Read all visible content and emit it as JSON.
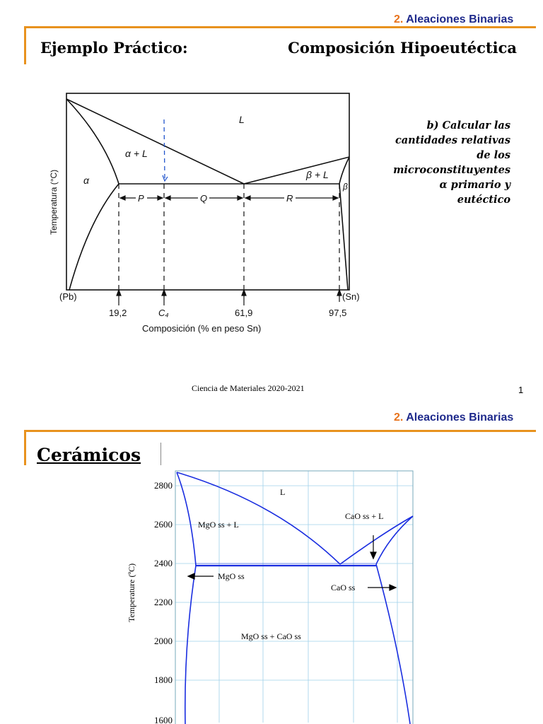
{
  "slide1": {
    "section_num": "2.",
    "section_title": "Aleaciones Binarias",
    "heading_left": "Ejemplo Práctico:",
    "heading_right": "Composición Hipoeutéctica",
    "task_lines": [
      "b) Calcular las",
      "cantidades relativas",
      "de los",
      "microconstituyentes",
      "α primario y",
      "eutéctico"
    ],
    "footer": "Ciencia de Materiales 2020-2021",
    "page_number": "1",
    "diagram": {
      "ylabel": "Temperatura (°C)",
      "xlabel": "Composición (% en peso Sn)",
      "left_end": "(Pb)",
      "right_end": "(Sn)",
      "ticks": [
        "19,2",
        "C₄",
        "61,9",
        "97,5"
      ],
      "regions": [
        "L",
        "α + L",
        "α",
        "β + L",
        "β"
      ],
      "segments": [
        "P",
        "Q",
        "R"
      ]
    }
  },
  "slide2": {
    "section_num": "2.",
    "section_title": "Aleaciones Binarias",
    "heading": "Cerámicos",
    "chart_data": {
      "type": "phase_diagram",
      "ylabel": "Temperature (ºC)",
      "y_ticks": [
        "2800",
        "2600",
        "2400",
        "2200",
        "2000",
        "1800",
        "1600"
      ],
      "ylim": [
        1600,
        2850
      ],
      "eutectic_temperature": 2390,
      "regions": [
        "L",
        "MgO ss + L",
        "CaO ss + L",
        "MgO ss",
        "CaO ss",
        "MgO ss + CaO ss"
      ]
    }
  }
}
